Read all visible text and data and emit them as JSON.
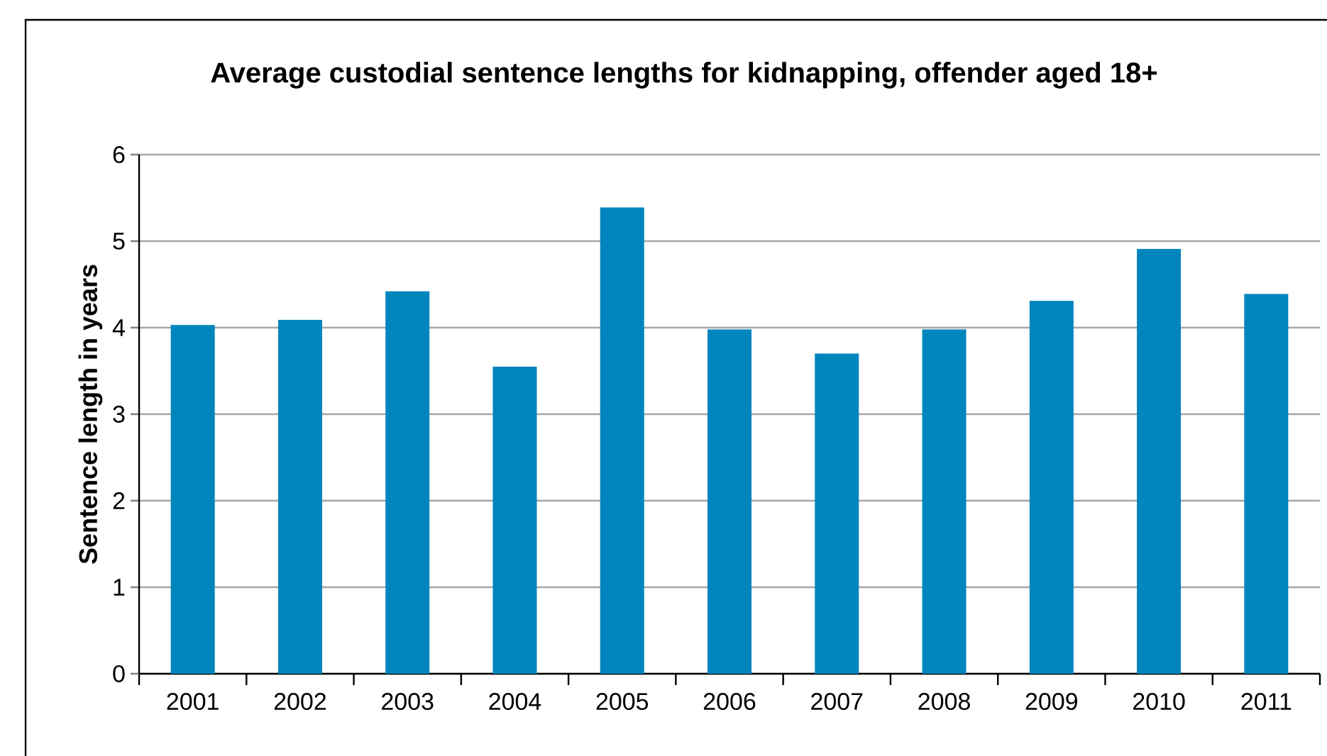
{
  "chart_data": {
    "type": "bar",
    "title": "Average custodial sentence lengths for kidnapping, offender aged 18+",
    "ylabel": "Sentence length in years",
    "categories": [
      "2001",
      "2002",
      "2003",
      "2004",
      "2005",
      "2006",
      "2007",
      "2008",
      "2009",
      "2010",
      "2011"
    ],
    "values": [
      4.03,
      4.09,
      4.42,
      3.55,
      5.39,
      3.98,
      3.7,
      3.98,
      4.31,
      4.91,
      4.39
    ],
    "color": "#0085bd",
    "ylim": [
      0,
      6
    ],
    "yticks": [
      0,
      1,
      2,
      3,
      4,
      5,
      6
    ],
    "grid": "y"
  }
}
